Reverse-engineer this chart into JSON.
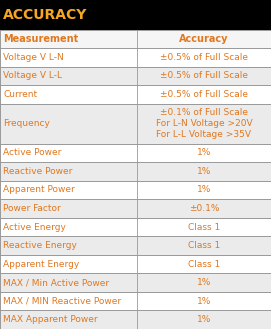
{
  "title": "ACCURACY",
  "title_bg": "#000000",
  "title_color": "#f5a623",
  "header_row": [
    "Measurement",
    "Accuracy"
  ],
  "rows": [
    [
      "Voltage V L-N",
      "±0.5% of Full Scale"
    ],
    [
      "Voltage V L-L",
      "±0.5% of Full Scale"
    ],
    [
      "Current",
      "±0.5% of Full Scale"
    ],
    [
      "Frequency",
      "±0.1% of Full Scale\nFor L-N Voltage >20V\nFor L-L Voltage >35V"
    ],
    [
      "Active Power",
      "1%"
    ],
    [
      "Reactive Power",
      "1%"
    ],
    [
      "Apparent Power",
      "1%"
    ],
    [
      "Power Factor",
      "±0.1%"
    ],
    [
      "Active Energy",
      "Class 1"
    ],
    [
      "Reactive Energy",
      "Class 1"
    ],
    [
      "Apparent Energy",
      "Class 1"
    ],
    [
      "MAX / Min Active Power",
      "1%"
    ],
    [
      "MAX / MIN Reactive Power",
      "1%"
    ],
    [
      "MAX Apparent Power",
      "1%"
    ]
  ],
  "row_bg_odd": "#ffffff",
  "row_bg_even": "#ebebeb",
  "text_color": "#e07820",
  "header_text_color": "#e07820",
  "border_color": "#999999",
  "font_size": 6.5,
  "header_font_size": 7.0,
  "title_font_size": 10.0,
  "col_split": 0.505,
  "fig_width": 2.71,
  "fig_height": 3.29,
  "dpi": 100
}
